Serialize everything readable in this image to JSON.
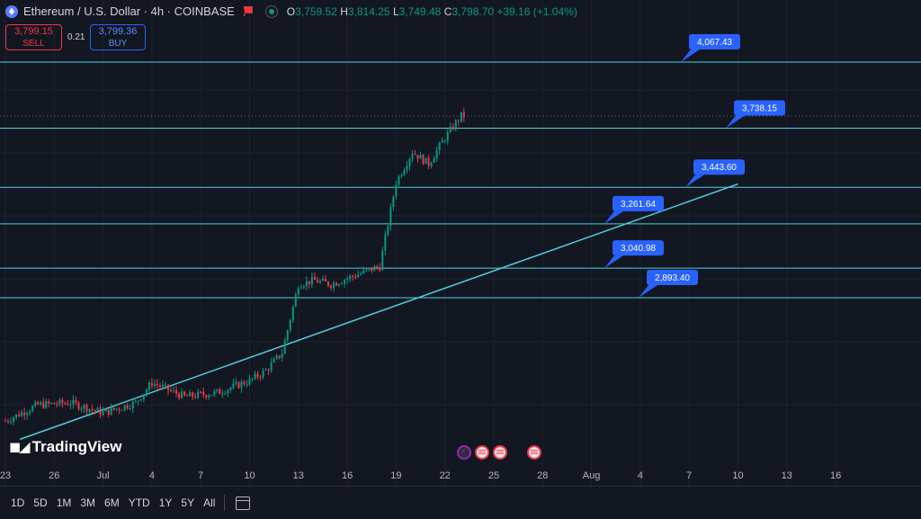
{
  "header": {
    "title": "Ethereum / U.S. Dollar · 4h · COINBASE",
    "ohlc": {
      "o_label": "O",
      "o": "3,759.52",
      "h_label": "H",
      "h": "3,814.25",
      "l_label": "L",
      "l": "3,749.48",
      "c_label": "C",
      "c": "3,798.70",
      "change": "+39.16 (+1.04%)"
    },
    "sell_price": "3,799.15",
    "sell_label": "SELL",
    "spread": "0.21",
    "buy_price": "3,799.36",
    "buy_label": "BUY"
  },
  "logo": "TradingView",
  "colors": {
    "background": "#131722",
    "up": "#089981",
    "down": "#f23645",
    "line": "#4dd0e1",
    "label": "#2962ff"
  },
  "x_axis": [
    "23",
    "26",
    "Jul",
    "4",
    "7",
    "10",
    "13",
    "16",
    "19",
    "22",
    "25",
    "28",
    "Aug",
    "4",
    "7",
    "10",
    "13",
    "16"
  ],
  "bottom_bar": {
    "timeframes": [
      "1D",
      "5D",
      "1M",
      "3M",
      "6M",
      "YTD",
      "1Y",
      "5Y",
      "All"
    ]
  },
  "event_icons": [
    "lightning-icon",
    "us-flag-icon",
    "us-flag-icon",
    "us-flag-icon"
  ],
  "chart_data": {
    "type": "candlestick",
    "symbol": "ETHUSD",
    "last_price": 3798.7,
    "horizontal_levels": [
      {
        "label": "4,067.43",
        "value": 4067.43
      },
      {
        "label": "3,738.15",
        "value": 3738.15
      },
      {
        "label": "3,443.60",
        "value": 3443.6
      },
      {
        "label": "3,261.64",
        "value": 3261.64
      },
      {
        "label": "3,040.98",
        "value": 3040.98
      },
      {
        "label": "2,893.40",
        "value": 2893.4
      }
    ],
    "trendline": {
      "from": {
        "date": "Jun 25",
        "price": 2220
      },
      "to": {
        "date": "Aug 7",
        "price": 3460
      }
    },
    "keypoints": [
      {
        "date": "Jun 23",
        "price": 2280
      },
      {
        "date": "Jun 25",
        "price": 2360
      },
      {
        "date": "Jun 27",
        "price": 2370
      },
      {
        "date": "Jun 29",
        "price": 2320
      },
      {
        "date": "Jul 1",
        "price": 2370
      },
      {
        "date": "Jul 2",
        "price": 2470
      },
      {
        "date": "Jul 4",
        "price": 2400
      },
      {
        "date": "Jul 6",
        "price": 2420
      },
      {
        "date": "Jul 8",
        "price": 2480
      },
      {
        "date": "Jul 9",
        "price": 2530
      },
      {
        "date": "Jul 10",
        "price": 2620
      },
      {
        "date": "Jul 11",
        "price": 2960
      },
      {
        "date": "Jul 12",
        "price": 2980
      },
      {
        "date": "Jul 13",
        "price": 2960
      },
      {
        "date": "Jul 14",
        "price": 2990
      },
      {
        "date": "Jul 15",
        "price": 3020
      },
      {
        "date": "Jul 16",
        "price": 3050
      },
      {
        "date": "Jul 17",
        "price": 3470
      },
      {
        "date": "Jul 18",
        "price": 3620
      },
      {
        "date": "Jul 19",
        "price": 3560
      },
      {
        "date": "Jul 20",
        "price": 3690
      },
      {
        "date": "Jul 21",
        "price": 3800
      }
    ]
  }
}
